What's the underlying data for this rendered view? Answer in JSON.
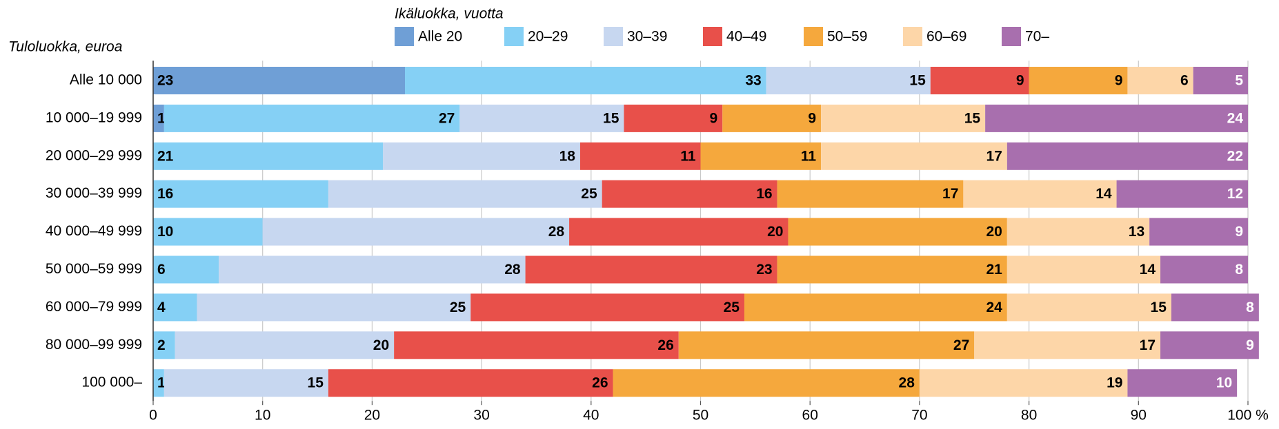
{
  "chart_data": {
    "type": "stacked_barh",
    "legend_title": "Ikäluokka, vuotta",
    "ylabel": "Tuloluokka, euroa",
    "categories": [
      "Alle 10 000",
      "10 000–19 999",
      "20 000–29 999",
      "30 000–39 999",
      "40 000–49 999",
      "50 000–59 999",
      "60 000–79 999",
      "80 000–99 999",
      "100 000–"
    ],
    "series": [
      {
        "name": "Alle 20",
        "color": "#6f9fd6",
        "values": [
          23,
          1,
          null,
          null,
          null,
          null,
          null,
          null,
          null
        ]
      },
      {
        "name": "20–29",
        "color": "#85d0f5",
        "values": [
          33,
          27,
          21,
          16,
          10,
          6,
          4,
          2,
          1
        ]
      },
      {
        "name": "30–39",
        "color": "#c7d7f0",
        "values": [
          15,
          15,
          18,
          25,
          28,
          28,
          25,
          20,
          15
        ]
      },
      {
        "name": "40–49",
        "color": "#e8504a",
        "values": [
          9,
          9,
          11,
          16,
          20,
          23,
          25,
          26,
          26
        ]
      },
      {
        "name": "50–59",
        "color": "#f5a83d",
        "values": [
          9,
          9,
          11,
          17,
          20,
          21,
          24,
          27,
          28
        ]
      },
      {
        "name": "60–69",
        "color": "#fdd6a8",
        "values": [
          6,
          15,
          17,
          14,
          13,
          14,
          15,
          17,
          19
        ]
      },
      {
        "name": "70–",
        "color": "#a86fae",
        "values": [
          5,
          24,
          22,
          12,
          9,
          8,
          8,
          9,
          10
        ]
      }
    ],
    "xlim": [
      0,
      100
    ],
    "xticks": [
      0,
      10,
      20,
      30,
      40,
      50,
      60,
      70,
      80,
      90,
      {
        "value": 100,
        "label": "100 %"
      }
    ],
    "grid": true
  }
}
